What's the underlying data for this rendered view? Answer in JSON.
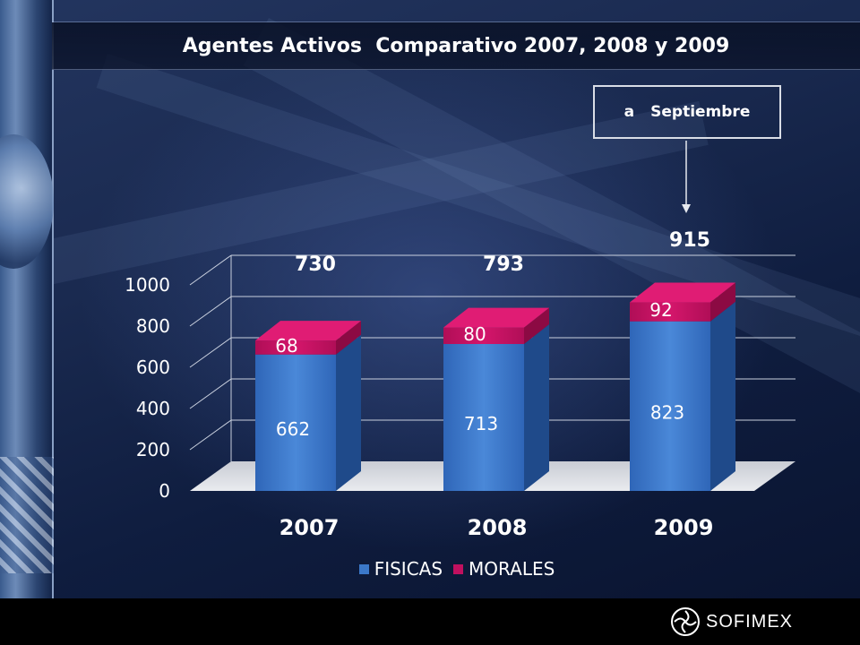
{
  "slide": {
    "title": "Agentes Activos  Comparativo 2007, 2008 y 2009",
    "note": {
      "prefix": "a",
      "text": "Septiembre"
    },
    "logo": {
      "text": "SOFIMEX",
      "icon": "sofimex-logo-icon"
    }
  },
  "chart_data": {
    "type": "bar",
    "stacked": true,
    "categories": [
      "2007",
      "2008",
      "2009"
    ],
    "series": [
      {
        "name": "FISICAS",
        "values": [
          662,
          713,
          823
        ],
        "color": "#3b78c9"
      },
      {
        "name": "MORALES",
        "values": [
          68,
          80,
          92
        ],
        "color": "#c0105f"
      }
    ],
    "totals": [
      "730",
      "793",
      "915"
    ],
    "y_ticks": [
      "0",
      "200",
      "400",
      "600",
      "800",
      "1000"
    ],
    "ylim": [
      0,
      1000
    ],
    "grid": true,
    "legend_position": "bottom"
  }
}
